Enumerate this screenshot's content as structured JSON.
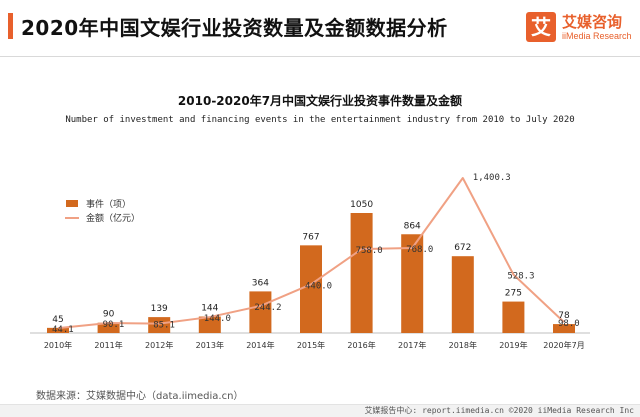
{
  "header": {
    "title": "2020年中国文娱行业投资数量及金额数据分析",
    "logo_mark": "艾",
    "logo_name": "艾媒咨询",
    "logo_sub": "iiMedia Research"
  },
  "chart_data": {
    "type": "bar",
    "title": "2010-2020年7月中国文娱行业投资事件数量及金额",
    "subtitle": "Number of investment and financing events in the  entertainment industry from 2010 to July 2020",
    "categories": [
      "2010年",
      "2011年",
      "2012年",
      "2013年",
      "2014年",
      "2015年",
      "2016年",
      "2017年",
      "2018年",
      "2019年",
      "2020年7月"
    ],
    "series": [
      {
        "name": "事件（项）",
        "type": "bar",
        "values": [
          45,
          90,
          139,
          144,
          364,
          767,
          1050,
          864,
          672,
          275,
          78
        ],
        "labels": [
          "45",
          "90",
          "139",
          "144",
          "364",
          "767",
          "1050",
          "864",
          "672",
          "275",
          "78"
        ]
      },
      {
        "name": "金额（亿元）",
        "type": "line",
        "values": [
          44.1,
          90.1,
          85.1,
          144.0,
          244.2,
          440.0,
          758.0,
          768.0,
          1400.3,
          528.3,
          98.0
        ],
        "labels": [
          "44.1",
          "90.1",
          "85.1",
          "144.0",
          "244.2",
          "440.0",
          "758.0",
          "768.0",
          "1,400.3",
          "528.3",
          "98.0"
        ]
      }
    ],
    "ylim": [
      0,
      1450
    ],
    "legend_position": "top-left",
    "grid": false,
    "colors": {
      "bar": "#d2691e",
      "line": "#f0a184"
    }
  },
  "source": "数据来源：艾媒数据中心（data.iimedia.cn）",
  "footer": "艾媒报告中心: report.iimedia.cn  ©2020   iiMedia Research  Inc"
}
